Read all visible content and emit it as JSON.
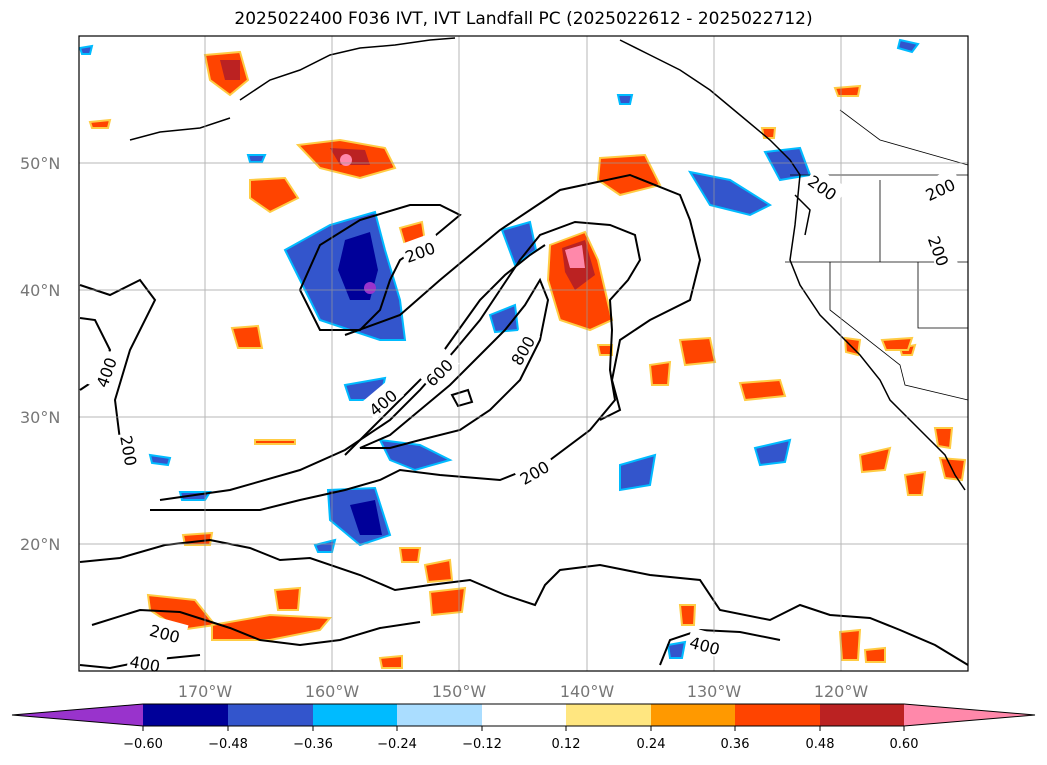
{
  "title": "2025022400 F036 IVT, IVT Landfall PC (2025022612 - 2025022712)",
  "map": {
    "projection": "PlateCarree",
    "lon_range": [
      -180,
      -110
    ],
    "lat_range": [
      10,
      60
    ],
    "lat_labels": [
      "50°N",
      "40°N",
      "30°N",
      "20°N"
    ],
    "lon_labels": [
      "170°W",
      "160°W",
      "150°W",
      "140°W",
      "130°W",
      "120°W"
    ],
    "gridlines": true,
    "ivt_contour_labels": [
      "200",
      "400",
      "600",
      "800",
      "200",
      "200",
      "400",
      "200",
      "200",
      "400",
      "400",
      "200",
      "200"
    ]
  },
  "colorbar": {
    "tick_labels": [
      "−0.60",
      "−0.48",
      "−0.36",
      "−0.24",
      "−0.12",
      "0.12",
      "0.24",
      "0.36",
      "0.48",
      "0.60"
    ],
    "colors": [
      "#9933cc",
      "#000099",
      "#3355cc",
      "#00bbff",
      "#aaddff",
      "#ffffff",
      "#ffe680",
      "#ff9900",
      "#ff4400",
      "#bb2222",
      "#ff88aa"
    ],
    "extend": "both"
  }
}
